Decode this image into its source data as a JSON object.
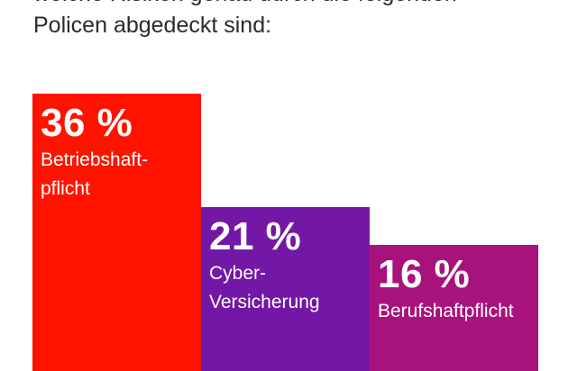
{
  "header": {
    "line1": "welche Risiken genau durch die folgenden",
    "line2": "Policen abgedeckt sind:"
  },
  "chart_data": {
    "type": "bar",
    "categories": [
      "Betriebshaftpflicht",
      "Cyber-Versicherung",
      "Berufshaftpflicht"
    ],
    "values": [
      36,
      21,
      16
    ],
    "unit": "%",
    "bars": [
      {
        "value": 36,
        "value_label": "36 %",
        "label_lines": [
          "Betriebshaft-",
          "pflicht"
        ],
        "color": "#ff1300"
      },
      {
        "value": 21,
        "value_label": "21 %",
        "label_lines": [
          "Cyber-",
          "Versicherung"
        ],
        "color": "#7318a6"
      },
      {
        "value": 16,
        "value_label": "16 %",
        "label_lines": [
          "Berufshaftpflicht"
        ],
        "color": "#a8127c"
      }
    ]
  }
}
